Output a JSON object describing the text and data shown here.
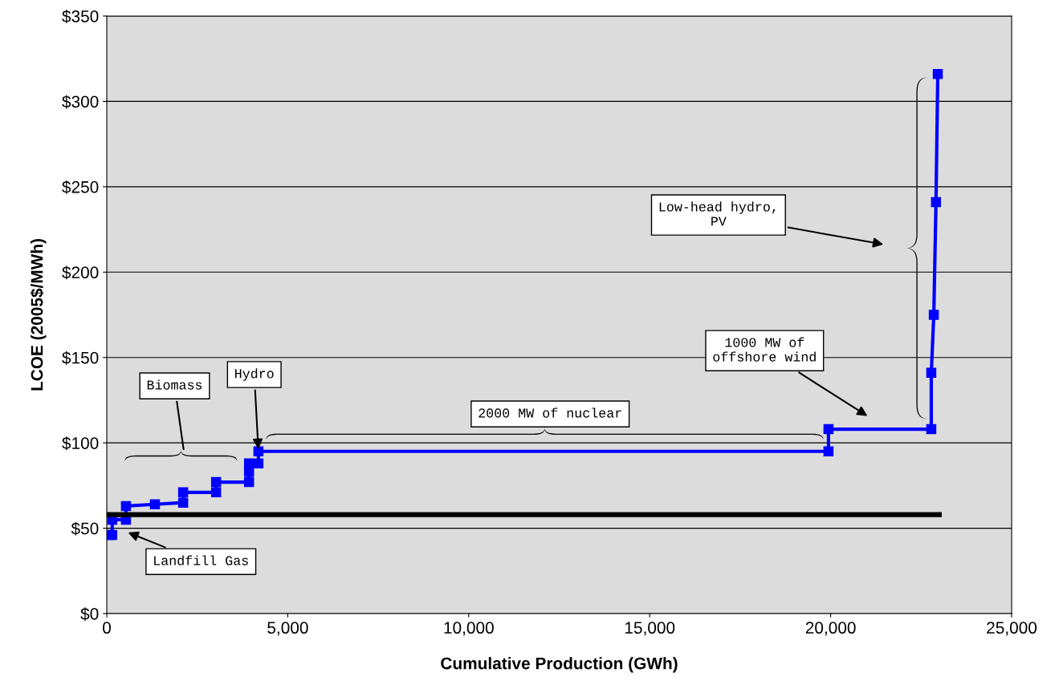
{
  "chart_data": {
    "type": "line",
    "xlabel": "Cumulative Production (GWh)",
    "ylabel": "LCOE (2005$/MWh)",
    "xlim": [
      0,
      25000
    ],
    "xticks": [
      0,
      {
        "value": 5000,
        "label": "5,000"
      },
      {
        "value": 10000,
        "label": "10,000"
      },
      {
        "value": 15000,
        "label": "15,000"
      },
      {
        "value": 20000,
        "label": "20,000"
      },
      {
        "value": 25000,
        "label": "25,000"
      }
    ],
    "ylim": [
      0,
      350
    ],
    "yticks": [
      {
        "value": 0,
        "label": "$0"
      },
      {
        "value": 50,
        "label": "$50"
      },
      {
        "value": 100,
        "label": "$100"
      },
      {
        "value": 150,
        "label": "$150"
      },
      {
        "value": 200,
        "label": "$200"
      },
      {
        "value": 250,
        "label": "$250"
      },
      {
        "value": 300,
        "label": "$300"
      },
      {
        "value": 350,
        "label": "$350"
      }
    ],
    "grid": "y",
    "marker": "square",
    "line_style": "solid",
    "series": [
      {
        "color": "#0000ff",
        "x": [
          50,
          150,
          150,
          530,
          530,
          1330,
          2110,
          2110,
          3020,
          3020,
          3930,
          3930,
          3930,
          4190,
          4190,
          19940,
          19940,
          22780,
          22780,
          22850,
          22910,
          22960
        ],
        "values": [
          46,
          46,
          55,
          55,
          63,
          64,
          65,
          71,
          71,
          77,
          77,
          83,
          88,
          88,
          95,
          95,
          108,
          108,
          141,
          175,
          241,
          316
        ]
      },
      {
        "color": "#000000",
        "marker": "none",
        "x": [
          0,
          23000
        ],
        "values": [
          58,
          58
        ]
      }
    ],
    "annotations": [
      "Biomass",
      {
        "text": "Hydro",
        "x": 4190,
        "y": 95
      },
      "Landfill Gas",
      "2000 MW of nuclear",
      "1000 MW of\noffshore wind",
      "Low-head hydro,\nPV"
    ]
  }
}
